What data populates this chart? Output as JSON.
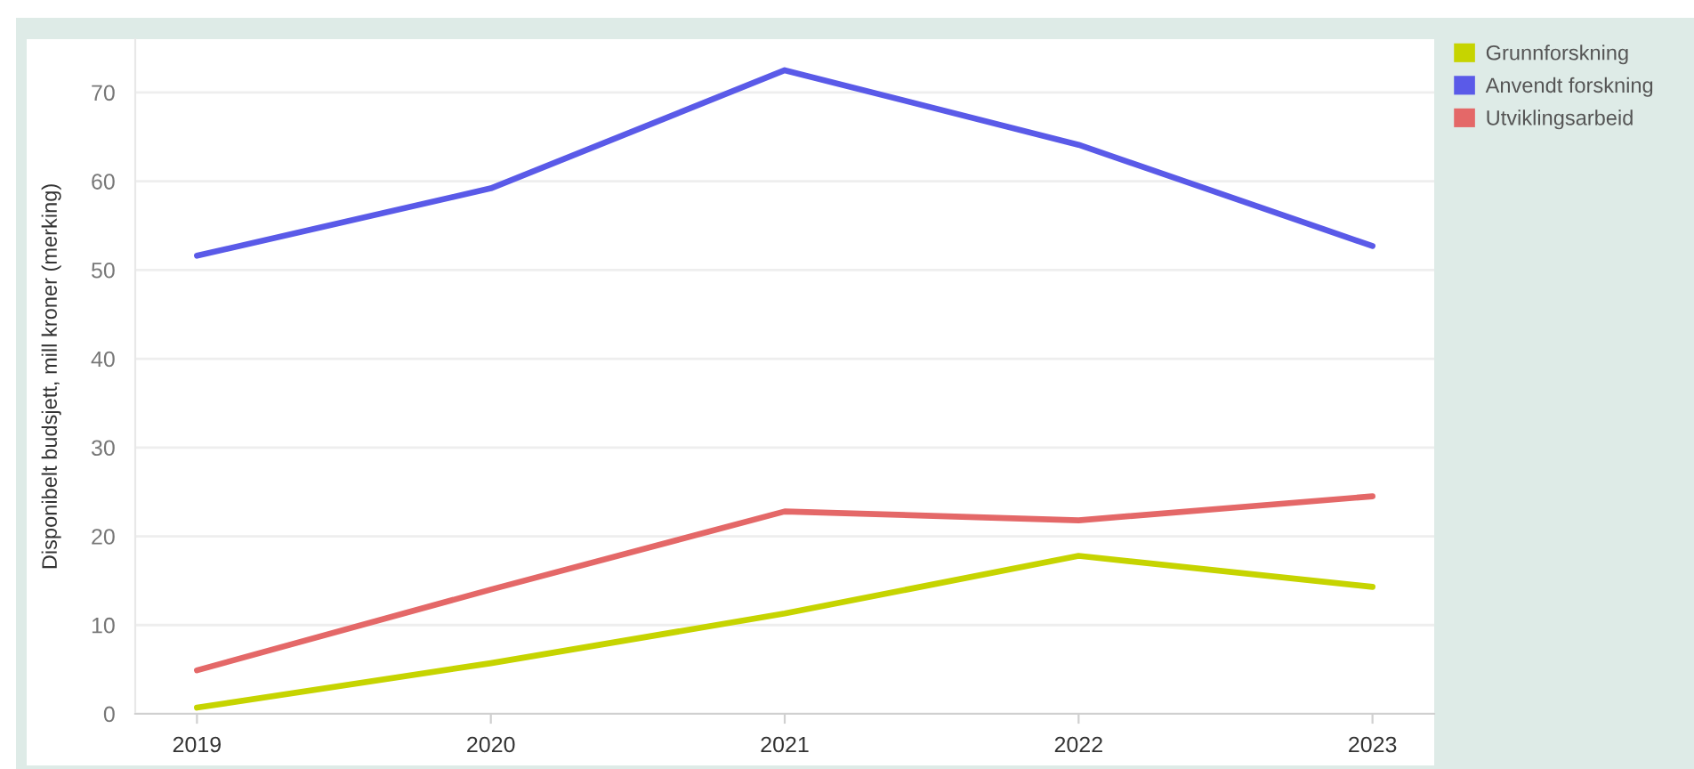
{
  "chart_data": {
    "type": "line",
    "ylabel": "Disponibelt budsjett, mill kroner (merking)",
    "x": [
      2019,
      2020,
      2021,
      2022,
      2023
    ],
    "series": [
      {
        "name": "Grunnforskning",
        "color": "#c6d400",
        "values": [
          0.7,
          5.7,
          11.3,
          17.8,
          14.3
        ]
      },
      {
        "name": "Anvendt forskning",
        "color": "#5a5ae8",
        "values": [
          51.6,
          59.2,
          72.5,
          64.1,
          52.7
        ]
      },
      {
        "name": "Utviklingsarbeid",
        "color": "#e46868",
        "values": [
          4.9,
          14.0,
          22.8,
          21.8,
          24.5
        ]
      }
    ],
    "xlim": [
      2018.79,
      2023.21
    ],
    "xticks": [
      2019,
      2020,
      2021,
      2022,
      2023
    ],
    "ylim": [
      0,
      76
    ],
    "yticks": [
      0,
      10,
      20,
      30,
      40,
      50,
      60,
      70
    ],
    "grid": "y",
    "legend": "top right"
  }
}
